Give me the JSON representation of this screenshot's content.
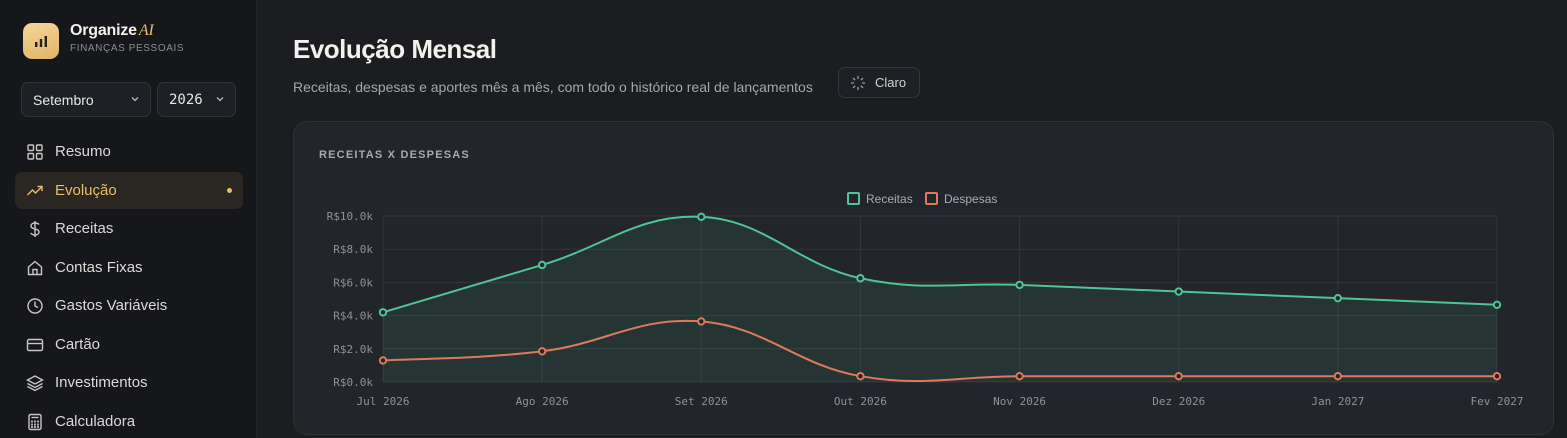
{
  "app": {
    "name": "Organize",
    "name_suffix": "AI",
    "tagline": "FINANÇAS PESSOAIS"
  },
  "filters": {
    "month": "Setembro",
    "year": "2026"
  },
  "sidebar": {
    "items": [
      {
        "label": "Resumo",
        "icon": "grid-icon",
        "active": false
      },
      {
        "label": "Evolução",
        "icon": "trending-up-icon",
        "active": true
      },
      {
        "label": "Receitas",
        "icon": "dollar-icon",
        "active": false
      },
      {
        "label": "Contas Fixas",
        "icon": "home-icon",
        "active": false
      },
      {
        "label": "Gastos Variáveis",
        "icon": "clock-icon",
        "active": false
      },
      {
        "label": "Cartão",
        "icon": "credit-card-icon",
        "active": false
      },
      {
        "label": "Investimentos",
        "icon": "layers-icon",
        "active": false
      },
      {
        "label": "Calculadora",
        "icon": "calculator-icon",
        "active": false
      }
    ]
  },
  "header": {
    "title": "Evolução Mensal",
    "subtitle": "Receitas, despesas e aportes mês a mês, com todo o histórico real de lançamentos",
    "theme_button": "Claro"
  },
  "colors": {
    "accent": "#e6bd6f",
    "receitas": "#4fc497",
    "despesas": "#dd7a5c"
  },
  "chart_card": {
    "title": "RECEITAS X DESPESAS"
  },
  "chart_data": {
    "type": "line",
    "categories": [
      "Jul 2026",
      "Ago 2026",
      "Set 2026",
      "Out 2026",
      "Nov 2026",
      "Dez 2026",
      "Jan 2027",
      "Fev 2027"
    ],
    "series": [
      {
        "name": "Receitas",
        "values": [
          4200,
          7050,
          9950,
          6250,
          5850,
          5450,
          5050,
          4650
        ],
        "filled": true
      },
      {
        "name": "Despesas",
        "values": [
          1300,
          1850,
          3650,
          350,
          350,
          350,
          350,
          350
        ],
        "filled": false
      }
    ],
    "ylim": [
      0,
      10000
    ],
    "yticks": [
      "R$0.0k",
      "R$2.0k",
      "R$4.0k",
      "R$6.0k",
      "R$8.0k",
      "R$10.0k"
    ],
    "grid": true,
    "legend": "top-center",
    "smooth": true
  }
}
